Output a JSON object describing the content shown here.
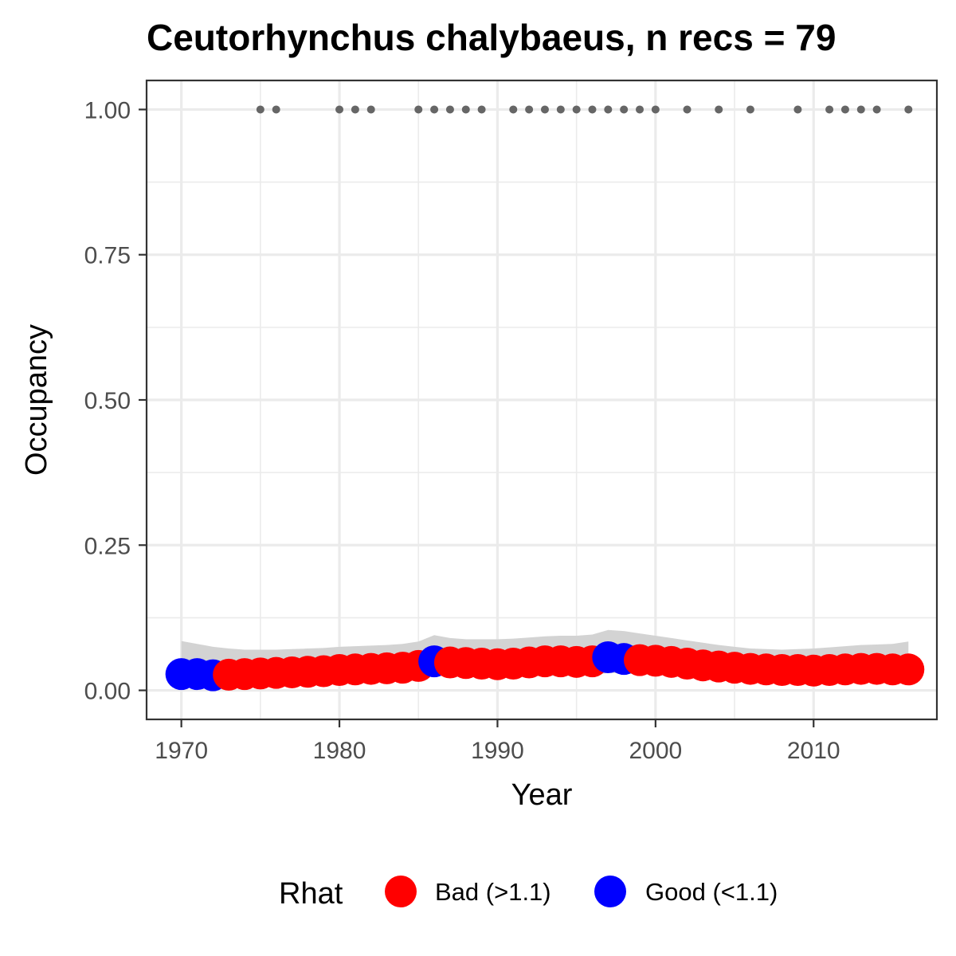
{
  "chart_data": {
    "type": "scatter",
    "title": "Ceutorhynchus chalybaeus, n recs = 79",
    "xlabel": "Year",
    "ylabel": "Occupancy",
    "xlim": [
      1967.8,
      2017.8
    ],
    "ylim": [
      -0.05,
      1.05
    ],
    "x_ticks": [
      1970,
      1980,
      1990,
      2000,
      2010
    ],
    "y_ticks": [
      0.0,
      0.25,
      0.5,
      0.75,
      1.0
    ],
    "x_tick_labels": [
      "1970",
      "1980",
      "1990",
      "2000",
      "2010"
    ],
    "y_tick_labels": [
      "0.00",
      "0.25",
      "0.50",
      "0.75",
      "1.00"
    ],
    "grid": true,
    "legend": {
      "title": "Rhat",
      "position": "bottom",
      "entries": [
        {
          "label": "Bad (>1.1)",
          "color": "#ff0000"
        },
        {
          "label": "Good (<1.1)",
          "color": "#0000ff"
        }
      ]
    },
    "colors": {
      "bad": "#ff0000",
      "good": "#0000ff",
      "records": "#666666",
      "ribbon": "#d3d3d3"
    },
    "occupancy": [
      {
        "year": 1970,
        "mean": 0.028,
        "lower": 0.012,
        "upper": 0.085,
        "rhat": "good"
      },
      {
        "year": 1971,
        "mean": 0.028,
        "lower": 0.012,
        "upper": 0.08,
        "rhat": "good"
      },
      {
        "year": 1972,
        "mean": 0.026,
        "lower": 0.012,
        "upper": 0.075,
        "rhat": "good"
      },
      {
        "year": 1973,
        "mean": 0.027,
        "lower": 0.012,
        "upper": 0.072,
        "rhat": "bad"
      },
      {
        "year": 1974,
        "mean": 0.028,
        "lower": 0.013,
        "upper": 0.07,
        "rhat": "bad"
      },
      {
        "year": 1975,
        "mean": 0.029,
        "lower": 0.014,
        "upper": 0.07,
        "rhat": "bad"
      },
      {
        "year": 1976,
        "mean": 0.03,
        "lower": 0.015,
        "upper": 0.07,
        "rhat": "bad"
      },
      {
        "year": 1977,
        "mean": 0.031,
        "lower": 0.016,
        "upper": 0.071,
        "rhat": "bad"
      },
      {
        "year": 1978,
        "mean": 0.032,
        "lower": 0.017,
        "upper": 0.072,
        "rhat": "bad"
      },
      {
        "year": 1979,
        "mean": 0.033,
        "lower": 0.018,
        "upper": 0.073,
        "rhat": "bad"
      },
      {
        "year": 1980,
        "mean": 0.035,
        "lower": 0.019,
        "upper": 0.075,
        "rhat": "bad"
      },
      {
        "year": 1981,
        "mean": 0.036,
        "lower": 0.02,
        "upper": 0.076,
        "rhat": "bad"
      },
      {
        "year": 1982,
        "mean": 0.037,
        "lower": 0.021,
        "upper": 0.077,
        "rhat": "bad"
      },
      {
        "year": 1983,
        "mean": 0.038,
        "lower": 0.022,
        "upper": 0.078,
        "rhat": "bad"
      },
      {
        "year": 1984,
        "mean": 0.039,
        "lower": 0.022,
        "upper": 0.08,
        "rhat": "bad"
      },
      {
        "year": 1985,
        "mean": 0.042,
        "lower": 0.024,
        "upper": 0.084,
        "rhat": "bad"
      },
      {
        "year": 1986,
        "mean": 0.05,
        "lower": 0.027,
        "upper": 0.095,
        "rhat": "good"
      },
      {
        "year": 1987,
        "mean": 0.048,
        "lower": 0.025,
        "upper": 0.09,
        "rhat": "bad"
      },
      {
        "year": 1988,
        "mean": 0.047,
        "lower": 0.024,
        "upper": 0.088,
        "rhat": "bad"
      },
      {
        "year": 1989,
        "mean": 0.046,
        "lower": 0.023,
        "upper": 0.088,
        "rhat": "bad"
      },
      {
        "year": 1990,
        "mean": 0.045,
        "lower": 0.022,
        "upper": 0.088,
        "rhat": "bad"
      },
      {
        "year": 1991,
        "mean": 0.046,
        "lower": 0.023,
        "upper": 0.089,
        "rhat": "bad"
      },
      {
        "year": 1992,
        "mean": 0.048,
        "lower": 0.024,
        "upper": 0.091,
        "rhat": "bad"
      },
      {
        "year": 1993,
        "mean": 0.05,
        "lower": 0.025,
        "upper": 0.093,
        "rhat": "bad"
      },
      {
        "year": 1994,
        "mean": 0.05,
        "lower": 0.025,
        "upper": 0.094,
        "rhat": "bad"
      },
      {
        "year": 1995,
        "mean": 0.049,
        "lower": 0.025,
        "upper": 0.094,
        "rhat": "bad"
      },
      {
        "year": 1996,
        "mean": 0.05,
        "lower": 0.026,
        "upper": 0.096,
        "rhat": "bad"
      },
      {
        "year": 1997,
        "mean": 0.057,
        "lower": 0.03,
        "upper": 0.104,
        "rhat": "good"
      },
      {
        "year": 1998,
        "mean": 0.054,
        "lower": 0.029,
        "upper": 0.102,
        "rhat": "good"
      },
      {
        "year": 1999,
        "mean": 0.052,
        "lower": 0.028,
        "upper": 0.098,
        "rhat": "bad"
      },
      {
        "year": 2000,
        "mean": 0.051,
        "lower": 0.027,
        "upper": 0.094,
        "rhat": "bad"
      },
      {
        "year": 2001,
        "mean": 0.049,
        "lower": 0.025,
        "upper": 0.09,
        "rhat": "bad"
      },
      {
        "year": 2002,
        "mean": 0.046,
        "lower": 0.023,
        "upper": 0.086,
        "rhat": "bad"
      },
      {
        "year": 2003,
        "mean": 0.043,
        "lower": 0.021,
        "upper": 0.082,
        "rhat": "bad"
      },
      {
        "year": 2004,
        "mean": 0.041,
        "lower": 0.019,
        "upper": 0.078,
        "rhat": "bad"
      },
      {
        "year": 2005,
        "mean": 0.039,
        "lower": 0.018,
        "upper": 0.075,
        "rhat": "bad"
      },
      {
        "year": 2006,
        "mean": 0.037,
        "lower": 0.017,
        "upper": 0.072,
        "rhat": "bad"
      },
      {
        "year": 2007,
        "mean": 0.036,
        "lower": 0.016,
        "upper": 0.071,
        "rhat": "bad"
      },
      {
        "year": 2008,
        "mean": 0.035,
        "lower": 0.016,
        "upper": 0.07,
        "rhat": "bad"
      },
      {
        "year": 2009,
        "mean": 0.035,
        "lower": 0.016,
        "upper": 0.071,
        "rhat": "bad"
      },
      {
        "year": 2010,
        "mean": 0.034,
        "lower": 0.016,
        "upper": 0.072,
        "rhat": "bad"
      },
      {
        "year": 2011,
        "mean": 0.035,
        "lower": 0.017,
        "upper": 0.074,
        "rhat": "bad"
      },
      {
        "year": 2012,
        "mean": 0.036,
        "lower": 0.017,
        "upper": 0.076,
        "rhat": "bad"
      },
      {
        "year": 2013,
        "mean": 0.037,
        "lower": 0.018,
        "upper": 0.078,
        "rhat": "bad"
      },
      {
        "year": 2014,
        "mean": 0.037,
        "lower": 0.018,
        "upper": 0.079,
        "rhat": "bad"
      },
      {
        "year": 2015,
        "mean": 0.036,
        "lower": 0.017,
        "upper": 0.08,
        "rhat": "bad"
      },
      {
        "year": 2016,
        "mean": 0.036,
        "lower": 0.017,
        "upper": 0.084,
        "rhat": "bad"
      }
    ],
    "record_years": [
      1975,
      1976,
      1980,
      1981,
      1982,
      1985,
      1986,
      1987,
      1988,
      1989,
      1991,
      1992,
      1993,
      1994,
      1995,
      1996,
      1997,
      1998,
      1999,
      2000,
      2002,
      2004,
      2006,
      2009,
      2011,
      2012,
      2013,
      2014,
      2016
    ],
    "record_value": 1.0
  }
}
